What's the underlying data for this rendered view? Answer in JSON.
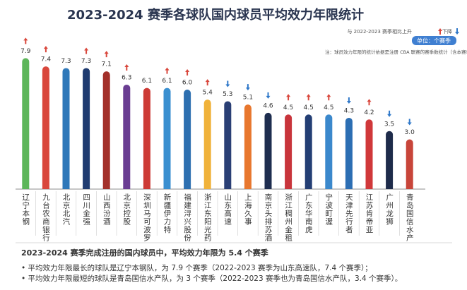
{
  "chart_data": {
    "type": "bar",
    "title": "2023-2024 赛季各球队国内球员平均效力年限统计",
    "legend_text": "与 2022-2023 赛季相比上升",
    "legend_down": "下降",
    "unit": "单位：个赛季",
    "note": "注：球员效力年限的统计依据是注册 CBA 联赛的赛季数统计（含本赛季）。",
    "categories": [
      "辽宁本钢",
      "九台农商银行",
      "北京北汽",
      "四川金强",
      "山西汾酒",
      "北京控股",
      "深圳马可波罗",
      "新疆伊力特",
      "福建浔兴股份",
      "浙江东阳光药",
      "山东高速",
      "上海久事",
      "南京头排苏酒",
      "浙江稠州金租",
      "广东华南虎",
      "宁波町渥",
      "天津先行者",
      "江苏肯帝亚",
      "广州龙狮",
      "青岛国信水产"
    ],
    "values": [
      7.9,
      7.4,
      7.3,
      7.3,
      7.1,
      6.3,
      6.1,
      6.1,
      6.0,
      5.4,
      5.3,
      5.1,
      4.6,
      4.5,
      4.5,
      4.5,
      4.3,
      4.2,
      3.5,
      3.0
    ],
    "value_labels": [
      "7.9",
      "7.4",
      "7.3",
      "7.3",
      "7.1",
      "6.3",
      "6.1",
      "6.1",
      "6.0",
      "5.4",
      "5.3",
      "5.1",
      "4.6",
      "4.5",
      "4.5",
      "4.5",
      "4.3",
      "4.2",
      "3.5",
      "3.0"
    ],
    "trend": [
      "up",
      "up",
      null,
      "up",
      "up",
      "up",
      null,
      "up",
      "up",
      "up",
      "down",
      "down",
      "down",
      "up",
      "up",
      "up",
      "down",
      "up",
      "down",
      "down"
    ],
    "colors": [
      "#5db65a",
      "#d9473c",
      "#2f78b9",
      "#1f3b70",
      "#a3302a",
      "#6a3d92",
      "#cd3a35",
      "#3a8fd0",
      "#2d6fb0",
      "#f0b23a",
      "#2a3f75",
      "#e8772e",
      "#1e2d4f",
      "#c8343b",
      "#233e74",
      "#3b88cc",
      "#2c6eb3",
      "#d0383a",
      "#1e2b4a",
      "#c8453a"
    ],
    "up_color": "#d9473c",
    "down_color": "#2f78c9",
    "summary": {
      "heading": "2023-2024 赛季完成注册的国内球员中，平均效力年限为 5.4 个赛季",
      "bullets": [
        "平均效力年限最长的球队是辽宁本钢队，为 7.9 个赛季（2022-2023 赛季为山东高速队，7.4 个赛季）；",
        "平均效力年限最短的球队是青岛国信水产队，为 3 个赛季（2022-2023 赛季也为青岛国信水产队，3.4 个赛季）。"
      ]
    }
  }
}
